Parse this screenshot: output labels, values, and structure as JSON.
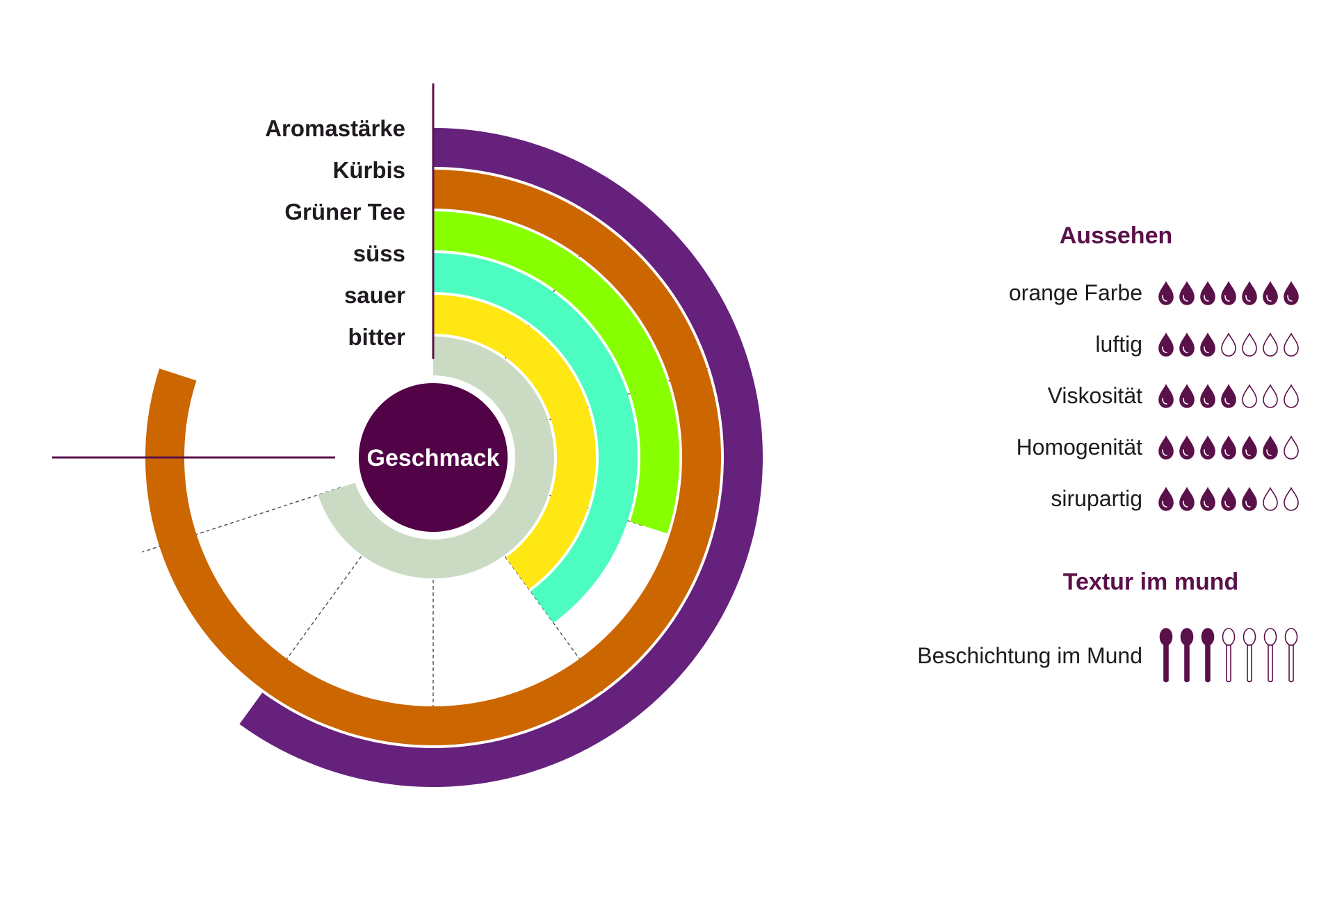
{
  "chart_data": [
    {
      "type": "radial-bar",
      "center_label": "Geschmack",
      "categories": [
        "Aromastärke",
        "Kürbis",
        "Grüner Tee",
        "süss",
        "sauer",
        "bitter"
      ],
      "values": [
        6,
        8,
        3,
        4,
        4,
        7
      ],
      "scale_max": 10,
      "colors": [
        "#65217c",
        "#cc6600",
        "#88ff00",
        "#4dfcc0",
        "#ffe713",
        "#cbdbc3"
      ],
      "grid": true
    },
    {
      "section": "Aussehen",
      "type": "rating",
      "icon": "drop-icon",
      "max": 7,
      "items": [
        {
          "label": "orange Farbe",
          "value": 7
        },
        {
          "label": "luftig",
          "value": 3
        },
        {
          "label": "Viskosität",
          "value": 4
        },
        {
          "label": "Homogenität",
          "value": 6
        },
        {
          "label": "sirupartig",
          "value": 5
        }
      ]
    },
    {
      "section": "Textur im mund",
      "type": "rating",
      "icon": "spoon-icon",
      "max": 7,
      "items": [
        {
          "label": "Beschichtung im Mund",
          "value": 3
        }
      ]
    }
  ],
  "colors": {
    "accent": "#5a1049",
    "center": "#520246"
  }
}
